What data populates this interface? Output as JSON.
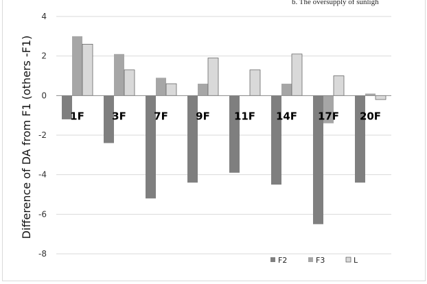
{
  "caption": "b.  The oversupply of sunligh",
  "chart_data": {
    "type": "bar",
    "ylabel": "Difference of DA from F1 (others -F1)",
    "xlabel": "",
    "ylim": [
      -8,
      4
    ],
    "yticks": [
      4,
      2,
      0,
      -2,
      -4,
      -6,
      -8
    ],
    "grid": true,
    "legend_position": "bottom-right",
    "categories": [
      "1F",
      "3F",
      "7F",
      "9F",
      "11F",
      "14F",
      "17F",
      "20F"
    ],
    "series": [
      {
        "name": "F2",
        "color": "#7f7f7f",
        "values": [
          -1.2,
          -2.4,
          -5.2,
          -4.4,
          -3.9,
          -4.5,
          -6.5,
          -4.4
        ]
      },
      {
        "name": "F3",
        "color": "#a6a6a6",
        "values": [
          3.0,
          2.1,
          0.9,
          0.6,
          0.0,
          0.6,
          -1.4,
          0.1
        ]
      },
      {
        "name": "L",
        "color": "#d9d9d9",
        "values": [
          2.6,
          1.3,
          0.6,
          1.9,
          1.3,
          2.1,
          1.0,
          -0.2
        ]
      }
    ]
  }
}
